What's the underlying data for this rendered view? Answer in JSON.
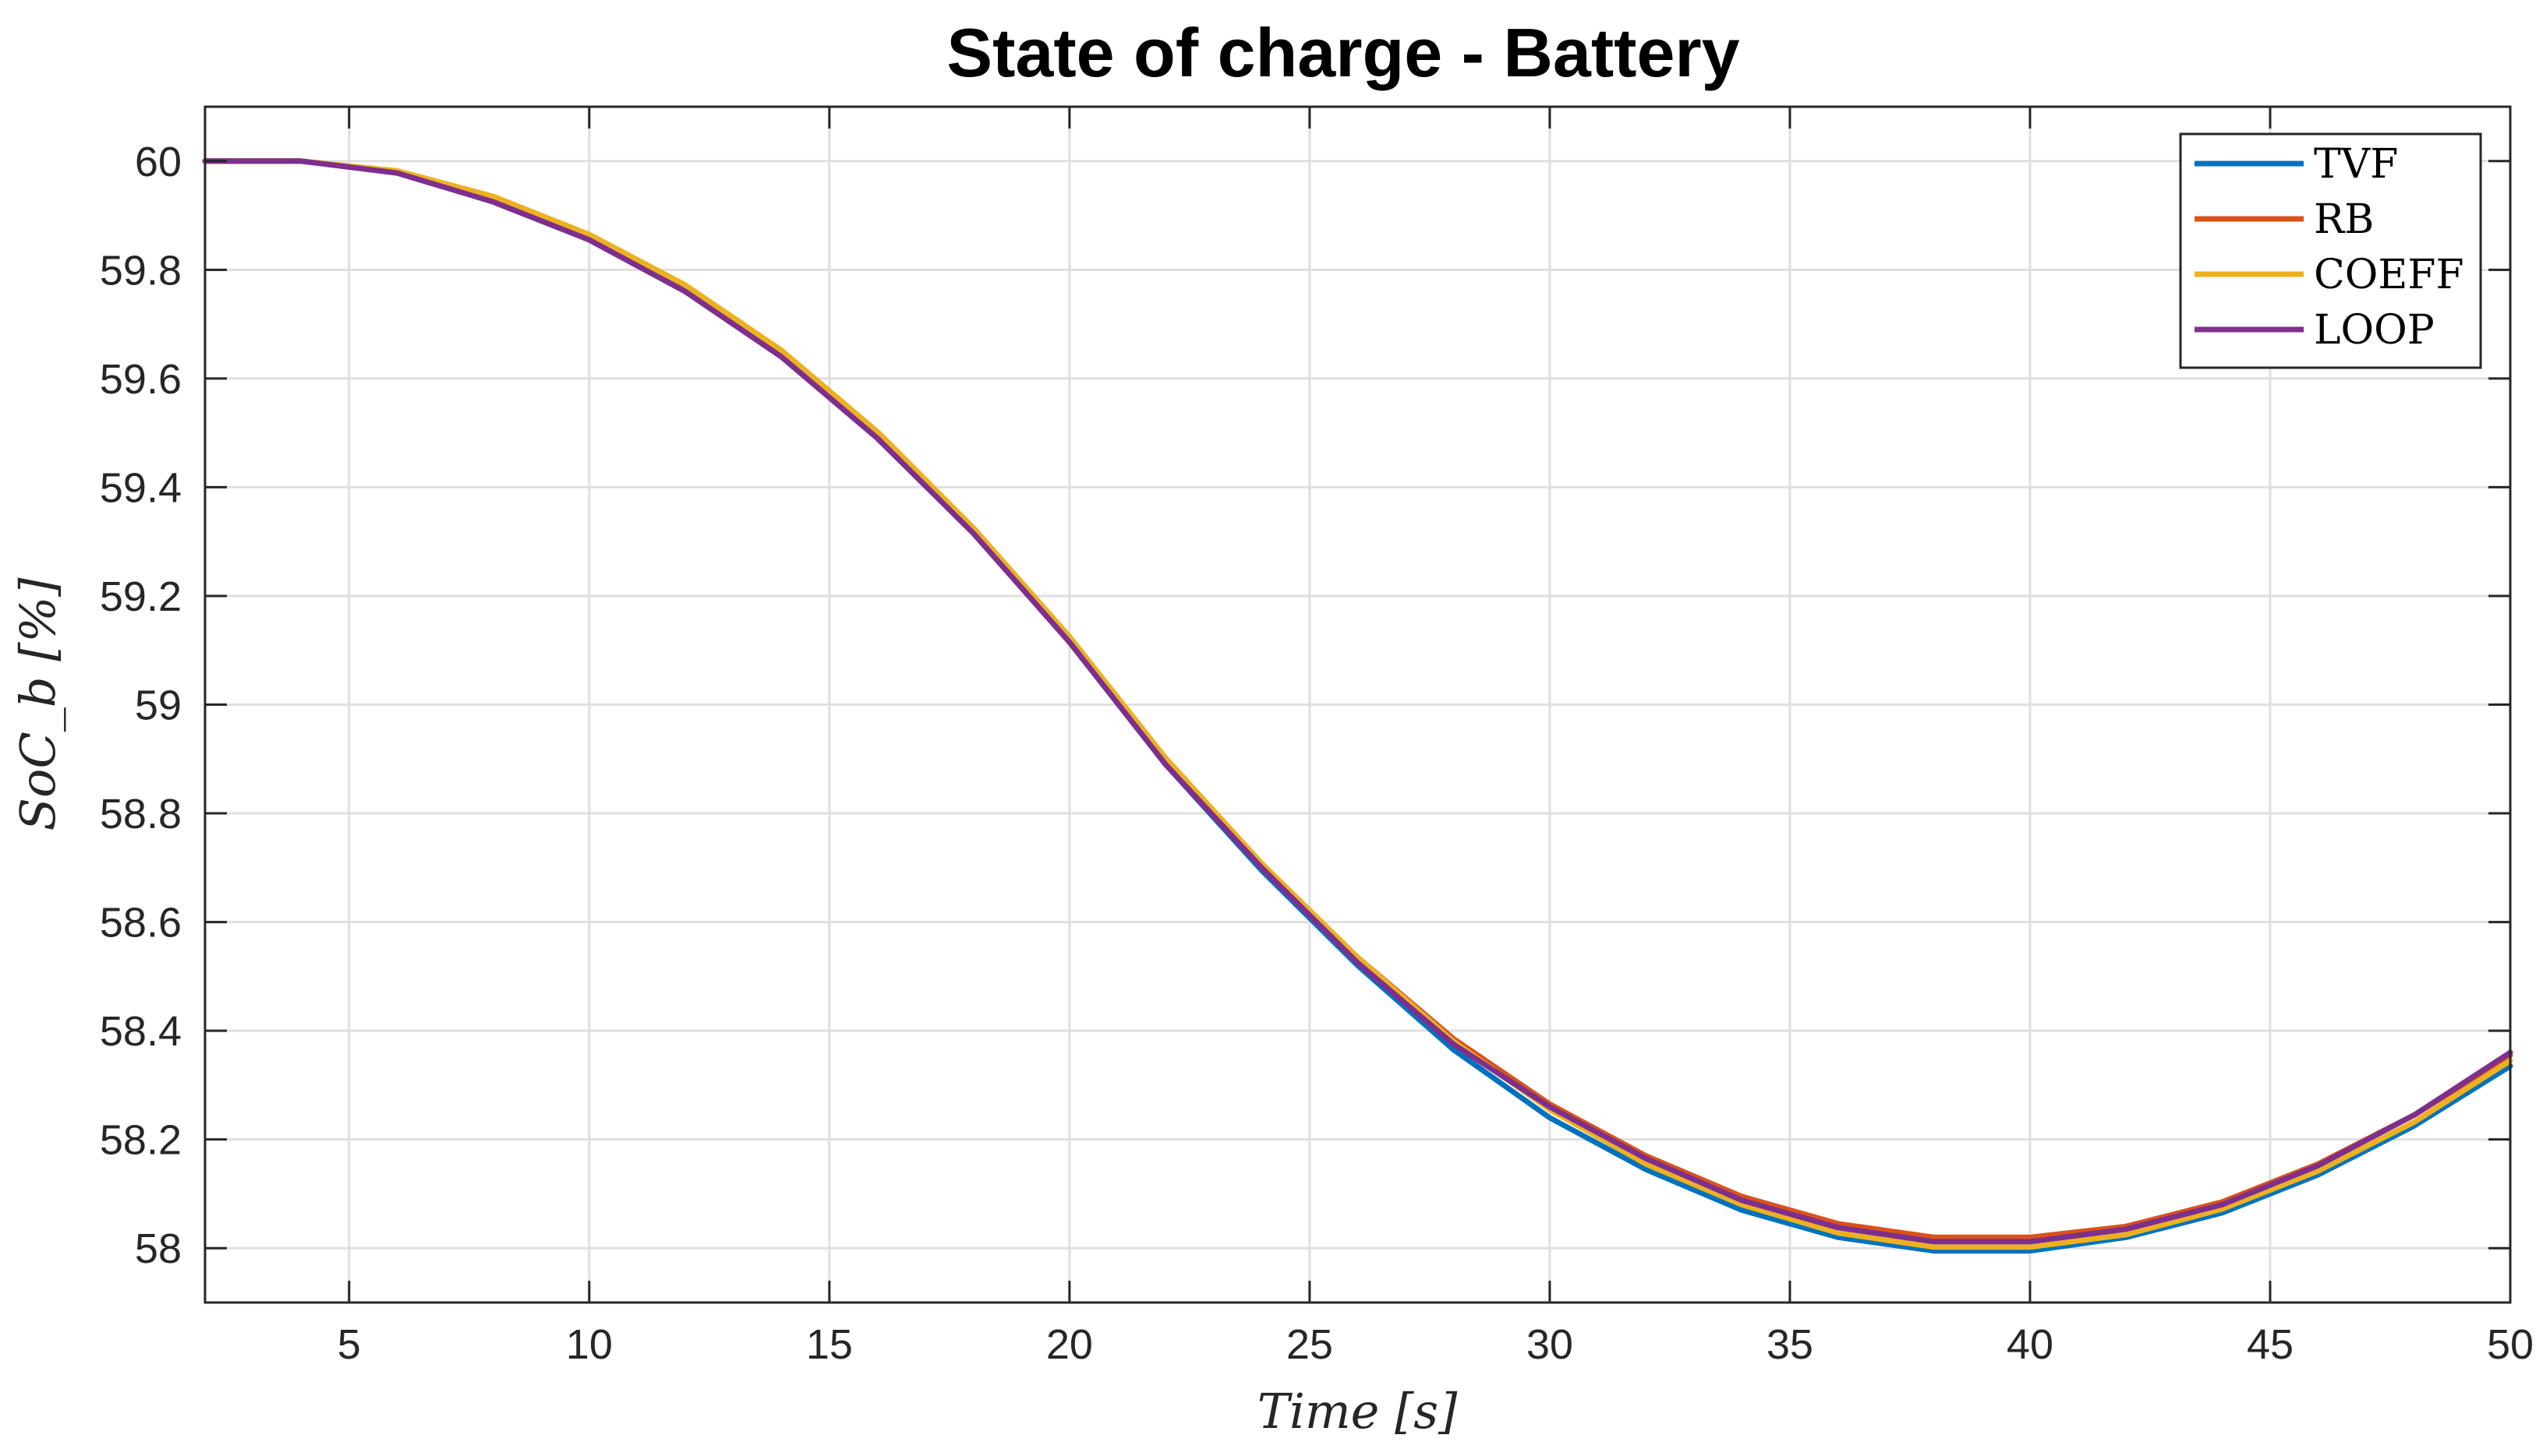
{
  "chart_data": {
    "type": "line",
    "title": "State of charge - Battery",
    "xlabel": "Time [s]",
    "ylabel": "SoC_b [%]",
    "xlim": [
      2,
      50
    ],
    "ylim": [
      57.9,
      60.1
    ],
    "xticks": [
      5,
      10,
      15,
      20,
      25,
      30,
      35,
      40,
      45,
      50
    ],
    "yticks": [
      58,
      58.2,
      58.4,
      58.6,
      58.8,
      59,
      59.2,
      59.4,
      59.6,
      59.8,
      60
    ],
    "ytick_labels": [
      "58",
      "58.2",
      "58.4",
      "58.6",
      "58.8",
      "59",
      "59.2",
      "59.4",
      "59.6",
      "59.8",
      "60"
    ],
    "grid": true,
    "legend_position": "top-right",
    "x": [
      2,
      4,
      6,
      8,
      10,
      12,
      14,
      16,
      18,
      20,
      22,
      24,
      26,
      28,
      30,
      32,
      34,
      36,
      38,
      40,
      42,
      44,
      46,
      48,
      50
    ],
    "series": [
      {
        "name": "TVF",
        "color": "#0072BD",
        "values": [
          60.0,
          60.0,
          59.98,
          59.93,
          59.86,
          59.765,
          59.645,
          59.495,
          59.32,
          59.115,
          58.89,
          58.695,
          58.52,
          58.365,
          58.24,
          58.145,
          58.07,
          58.02,
          57.995,
          57.995,
          58.02,
          58.065,
          58.135,
          58.225,
          58.335
        ]
      },
      {
        "name": "RB",
        "color": "#D95319",
        "values": [
          60.0,
          60.0,
          59.98,
          59.925,
          59.855,
          59.76,
          59.64,
          59.49,
          59.315,
          59.115,
          58.895,
          58.705,
          58.535,
          58.385,
          58.265,
          58.17,
          58.095,
          58.045,
          58.02,
          58.02,
          58.04,
          58.085,
          58.155,
          58.245,
          58.355
        ]
      },
      {
        "name": "COEFF",
        "color": "#EDB120",
        "values": [
          60.0,
          60.0,
          59.982,
          59.935,
          59.865,
          59.772,
          59.652,
          59.502,
          59.325,
          59.125,
          58.902,
          58.708,
          58.535,
          58.38,
          58.255,
          58.155,
          58.08,
          58.028,
          58.002,
          58.002,
          58.025,
          58.072,
          58.142,
          58.232,
          58.345
        ]
      },
      {
        "name": "LOOP",
        "color": "#7E2F8E",
        "values": [
          60.0,
          60.0,
          59.978,
          59.925,
          59.855,
          59.76,
          59.64,
          59.49,
          59.315,
          59.115,
          58.89,
          58.7,
          58.525,
          58.375,
          58.26,
          58.165,
          58.088,
          58.038,
          58.012,
          58.012,
          58.035,
          58.08,
          58.152,
          58.245,
          58.36
        ]
      }
    ]
  }
}
